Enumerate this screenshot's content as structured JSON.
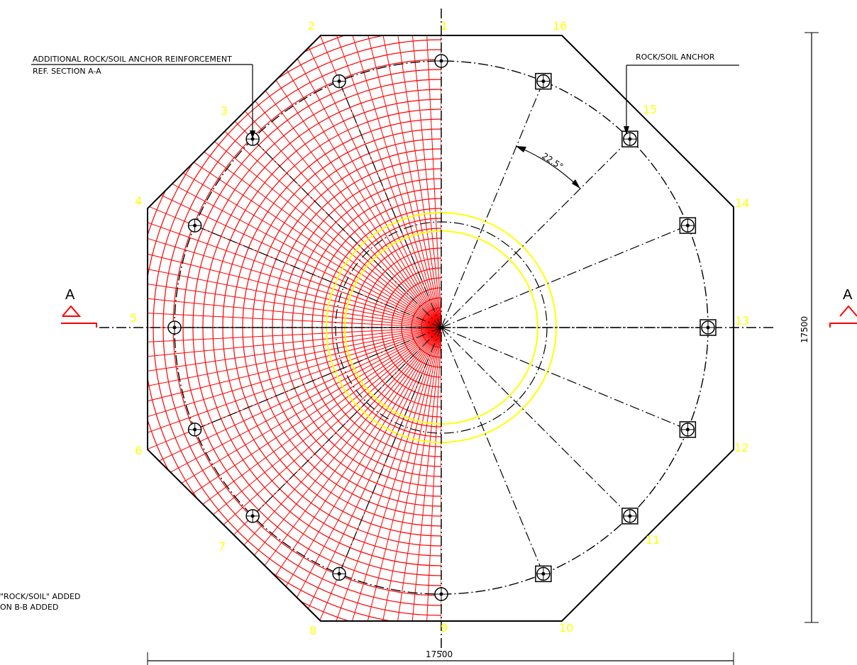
{
  "annotations": {
    "left_callout_line1": "ADDITIONAL ROCK/SOIL ANCHOR REINFORCEMENT",
    "left_callout_line2": "REF. SECTION A-A",
    "right_callout": "ROCK/SOIL ANCHOR",
    "angle": "22.5°",
    "revision_note_1": "\"ROCK/SOIL\" ADDED",
    "revision_note_2": "ON B-B ADDED"
  },
  "dimensions": {
    "horizontal": "17500",
    "vertical": "17500"
  },
  "section_marks": {
    "left": "A",
    "right": "A"
  },
  "vertex_numbers": [
    "1",
    "2",
    "3",
    "4",
    "5",
    "6",
    "7",
    "8",
    "9",
    "10",
    "11",
    "12",
    "13",
    "14",
    "15",
    "16"
  ],
  "colors": {
    "rebar_mesh": "#ff0000",
    "vertex_labels": "#ffff00",
    "pedestal_ring": "#ffff00",
    "linework": "#000000",
    "background": "#ffffff"
  },
  "anchor_count": 16,
  "anchor_angle_step_deg": 22.5
}
